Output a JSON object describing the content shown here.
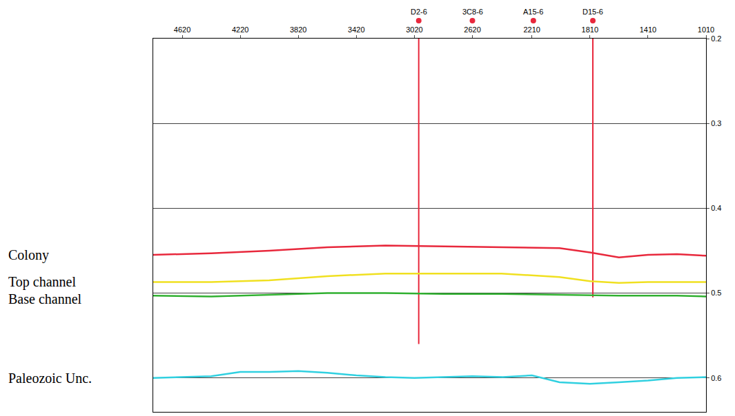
{
  "chart_data": {
    "type": "line",
    "xlim": [
      4820,
      1010
    ],
    "xticks": [
      4620,
      4220,
      3820,
      3420,
      3020,
      2620,
      2210,
      1810,
      1410,
      1010
    ],
    "ylim": [
      0.2,
      0.64
    ],
    "yticks": [
      0.2,
      0.3,
      0.4,
      0.5,
      0.6
    ],
    "grid": true,
    "series": [
      {
        "name": "Colony",
        "color": "#e8283c",
        "x": [
          4820,
          4420,
          4020,
          3620,
          3220,
          2820,
          2420,
          2020,
          1810,
          1610,
          1410,
          1210,
          1010
        ],
        "values": [
          0.455,
          0.453,
          0.45,
          0.446,
          0.444,
          0.445,
          0.446,
          0.447,
          0.452,
          0.458,
          0.455,
          0.454,
          0.456
        ]
      },
      {
        "name": "Top channel",
        "color": "#f0e020",
        "x": [
          4820,
          4420,
          4020,
          3620,
          3220,
          2820,
          2420,
          2020,
          1810,
          1610,
          1410,
          1210,
          1010
        ],
        "values": [
          0.487,
          0.487,
          0.485,
          0.48,
          0.477,
          0.477,
          0.477,
          0.481,
          0.486,
          0.488,
          0.487,
          0.487,
          0.487
        ]
      },
      {
        "name": "Base channel",
        "color": "#30b030",
        "x": [
          4820,
          4420,
          4020,
          3620,
          3220,
          2820,
          2420,
          2020,
          1810,
          1610,
          1410,
          1210,
          1010
        ],
        "values": [
          0.503,
          0.504,
          0.502,
          0.5,
          0.5,
          0.501,
          0.501,
          0.502,
          0.503,
          0.503,
          0.503,
          0.503,
          0.504
        ]
      },
      {
        "name": "Paleozoic Unc.",
        "color": "#30d0e0",
        "x": [
          4820,
          4420,
          4220,
          4020,
          3820,
          3620,
          3420,
          3220,
          3020,
          2820,
          2620,
          2410,
          2210,
          2020,
          1810,
          1610,
          1410,
          1210,
          1010
        ],
        "values": [
          0.6,
          0.598,
          0.593,
          0.593,
          0.592,
          0.594,
          0.597,
          0.599,
          0.6,
          0.599,
          0.598,
          0.599,
          0.597,
          0.605,
          0.607,
          0.605,
          0.603,
          0.6,
          0.599
        ]
      }
    ],
    "wells": [
      {
        "name": "D2-6",
        "x": 2990,
        "color": "#e8283c",
        "log": [
          0.2,
          0.56
        ]
      },
      {
        "name": "3C8-6",
        "x": 2620,
        "color": "#e8283c"
      },
      {
        "name": "A15-6",
        "x": 2200,
        "color": "#e8283c"
      },
      {
        "name": "D15-6",
        "x": 1790,
        "color": "#e8283c",
        "log": [
          0.2,
          0.505
        ]
      }
    ]
  }
}
